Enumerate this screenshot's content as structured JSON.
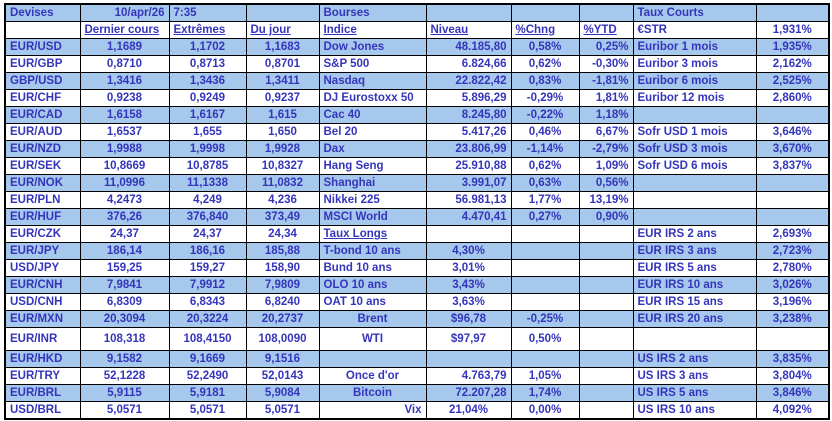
{
  "page": {
    "background": "#FFFFFF"
  },
  "colors": {
    "row_stripe": "#A6C8EC",
    "text": "#3535BB",
    "border": "#000000"
  },
  "header": {
    "devises_label": "Devises",
    "date": "10/apr/26",
    "time": "7:35",
    "bourses_label": "Bourses",
    "taux_courts_label": "Taux Courts"
  },
  "table": {
    "columns": [
      {
        "name": "pair",
        "width": 75,
        "align": "l"
      },
      {
        "name": "dernier-cours",
        "width": 89,
        "align": "c"
      },
      {
        "name": "extremes",
        "width": 77,
        "align": "c"
      },
      {
        "name": "du-jour",
        "width": 73,
        "align": "c"
      },
      {
        "name": "indice",
        "width": 107,
        "align": "l"
      },
      {
        "name": "niveau",
        "width": 85,
        "align": "r"
      },
      {
        "name": "pct-chng",
        "width": 68,
        "align": "c"
      },
      {
        "name": "pct-ytd",
        "width": 54,
        "align": "r"
      },
      {
        "name": "taux-label",
        "width": 123,
        "align": "l"
      },
      {
        "name": "taux-value",
        "width": 73,
        "align": "c"
      }
    ],
    "rows": [
      {
        "shade": true,
        "cells": [
          "Devises",
          "10/apr/26",
          "7:35",
          "",
          "Bourses",
          "",
          "",
          "",
          "Taux Courts",
          ""
        ]
      },
      {
        "shade": false,
        "cells": [
          "",
          "Dernier cours",
          "Extrêmes",
          "Du jour",
          "Indice",
          "Niveau",
          "%Chng",
          "%YTD",
          "€STR",
          "1,931%"
        ]
      },
      {
        "shade": true,
        "cells": [
          "EUR/USD",
          "1,1689",
          "1,1702",
          "1,1683",
          "Dow Jones",
          "48.185,80",
          "0,58%",
          "0,25%",
          "Euribor 1 mois",
          "1,935%"
        ]
      },
      {
        "shade": false,
        "cells": [
          "EUR/GBP",
          "0,8710",
          "0,8713",
          "0,8701",
          "S&P 500",
          "6.824,66",
          "0,62%",
          "-0,30%",
          "Euribor 3 mois",
          "2,162%"
        ]
      },
      {
        "shade": true,
        "cells": [
          "GBP/USD",
          "1,3416",
          "1,3436",
          "1,3411",
          "Nasdaq",
          "22.822,42",
          "0,83%",
          "-1,81%",
          "Euribor 6 mois",
          "2,525%"
        ]
      },
      {
        "shade": false,
        "cells": [
          "EUR/CHF",
          "0,9238",
          "0,9249",
          "0,9237",
          "DJ Eurostoxx 50",
          "5.896,29",
          "-0,29%",
          "1,81%",
          "Euribor 12 mois",
          "2,860%"
        ]
      },
      {
        "shade": true,
        "cells": [
          "EUR/CAD",
          "1,6158",
          "1,6167",
          "1,615",
          "Cac 40",
          "8.245,80",
          "-0,22%",
          "1,18%",
          "",
          ""
        ]
      },
      {
        "shade": false,
        "cells": [
          "EUR/AUD",
          "1,6537",
          "1,655",
          "1,650",
          "Bel 20",
          "5.417,26",
          "0,46%",
          "6,67%",
          "Sofr USD 1 mois",
          "3,646%"
        ]
      },
      {
        "shade": true,
        "cells": [
          "EUR/NZD",
          "1,9988",
          "1,9998",
          "1,9928",
          "Dax",
          "23.806,99",
          "-1,14%",
          "-2,79%",
          "Sofr USD 3 mois",
          "3,670%"
        ]
      },
      {
        "shade": false,
        "cells": [
          "EUR/SEK",
          "10,8669",
          "10,8785",
          "10,8327",
          "Hang Seng",
          "25.910,88",
          "0,62%",
          "1,09%",
          "Sofr USD 6 mois",
          "3,837%"
        ]
      },
      {
        "shade": true,
        "cells": [
          "EUR/NOK",
          "11,0996",
          "11,1338",
          "11,0832",
          "Shanghai",
          "3.991,07",
          "0,63%",
          "0,56%",
          "",
          ""
        ]
      },
      {
        "shade": false,
        "cells": [
          "EUR/PLN",
          "4,2473",
          "4,249",
          "4,236",
          "Nikkei 225",
          "56.981,13",
          "1,77%",
          "13,19%",
          "",
          ""
        ]
      },
      {
        "shade": true,
        "cells": [
          "EUR/HUF",
          "376,26",
          "376,840",
          "373,49",
          "MSCI World",
          "4.470,41",
          "0,27%",
          "0,90%",
          "",
          ""
        ]
      },
      {
        "shade": false,
        "cells": [
          "EUR/CZK",
          "24,37",
          "24,37",
          "24,34",
          "Taux Longs",
          "",
          "",
          "",
          "EUR IRS 2 ans",
          "2,693%"
        ]
      },
      {
        "shade": true,
        "cells": [
          "EUR/JPY",
          "186,14",
          "186,16",
          "185,88",
          "T-bond 10 ans",
          "4,30%",
          "",
          "",
          "EUR IRS 3 ans",
          "2,723%"
        ]
      },
      {
        "shade": false,
        "cells": [
          "USD/JPY",
          "159,25",
          "159,27",
          "158,90",
          "Bund 10 ans",
          "3,01%",
          "",
          "",
          "EUR IRS 5 ans",
          "2,780%"
        ]
      },
      {
        "shade": true,
        "cells": [
          "EUR/CNH",
          "7,9841",
          "7,9912",
          "7,9809",
          "OLO 10 ans",
          "3,43%",
          "",
          "",
          "EUR IRS 10 ans",
          "3,026%"
        ]
      },
      {
        "shade": false,
        "cells": [
          "USD/CNH",
          "6,8309",
          "6,8343",
          "6,8240",
          "OAT 10 ans",
          "3,63%",
          "",
          "",
          "EUR IRS 15 ans",
          "3,196%"
        ]
      },
      {
        "shade": true,
        "cells": [
          "EUR/MXN",
          "20,3094",
          "20,3224",
          "20,2737",
          "Brent",
          "$96,78",
          "-0,25%",
          "",
          "EUR IRS 20 ans",
          "3,238%"
        ]
      },
      {
        "shade": false,
        "tall": true,
        "cells": [
          "EUR/INR",
          "108,318",
          "108,4150",
          "108,0090",
          "WTI",
          "$97,97",
          "0,50%",
          "",
          "",
          ""
        ]
      },
      {
        "shade": true,
        "cells": [
          "EUR/HKD",
          "9,1582",
          "9,1669",
          "9,1516",
          "",
          "",
          "",
          "",
          "US IRS 2 ans",
          "3,835%"
        ]
      },
      {
        "shade": false,
        "cells": [
          "EUR/TRY",
          "52,1228",
          "52,2490",
          "52,0143",
          "Once d'or",
          "4.763,79",
          "1,05%",
          "",
          "US IRS 3 ans",
          "3,804%"
        ]
      },
      {
        "shade": true,
        "cells": [
          "EUR/BRL",
          "5,9115",
          "5,9181",
          "5,9084",
          "Bitcoin",
          "72.207,28",
          "1,74%",
          "",
          "US IRS 5 ans",
          "3,846%"
        ]
      },
      {
        "shade": false,
        "cells": [
          "USD/BRL",
          "5,0571",
          "5,0571",
          "5,0571",
          "Vix",
          "21,04%",
          "0,00%",
          "",
          "US IRS 10 ans",
          "4,092%"
        ]
      }
    ],
    "cell_overrides": {
      "0,1": {
        "a": "r"
      },
      "0,2": {
        "a": "l"
      },
      "1,1": {
        "a": "l",
        "u": true
      },
      "1,2": {
        "a": "l",
        "u": true
      },
      "1,3": {
        "a": "l",
        "u": true
      },
      "1,4": {
        "a": "l",
        "u": true
      },
      "1,5": {
        "a": "l",
        "u": true
      },
      "1,6": {
        "a": "l",
        "u": true
      },
      "1,7": {
        "a": "l",
        "u": true
      },
      "13,4": {
        "u": true
      },
      "14,5": {
        "a": "c"
      },
      "15,5": {
        "a": "c"
      },
      "16,5": {
        "a": "c"
      },
      "17,5": {
        "a": "c"
      },
      "18,4": {
        "a": "c"
      },
      "18,5": {
        "a": "c"
      },
      "19,4": {
        "a": "c"
      },
      "19,5": {
        "a": "c"
      },
      "21,4": {
        "a": "c"
      },
      "22,4": {
        "a": "c"
      },
      "23,4": {
        "a": "r"
      },
      "23,5": {
        "a": "c"
      }
    }
  }
}
